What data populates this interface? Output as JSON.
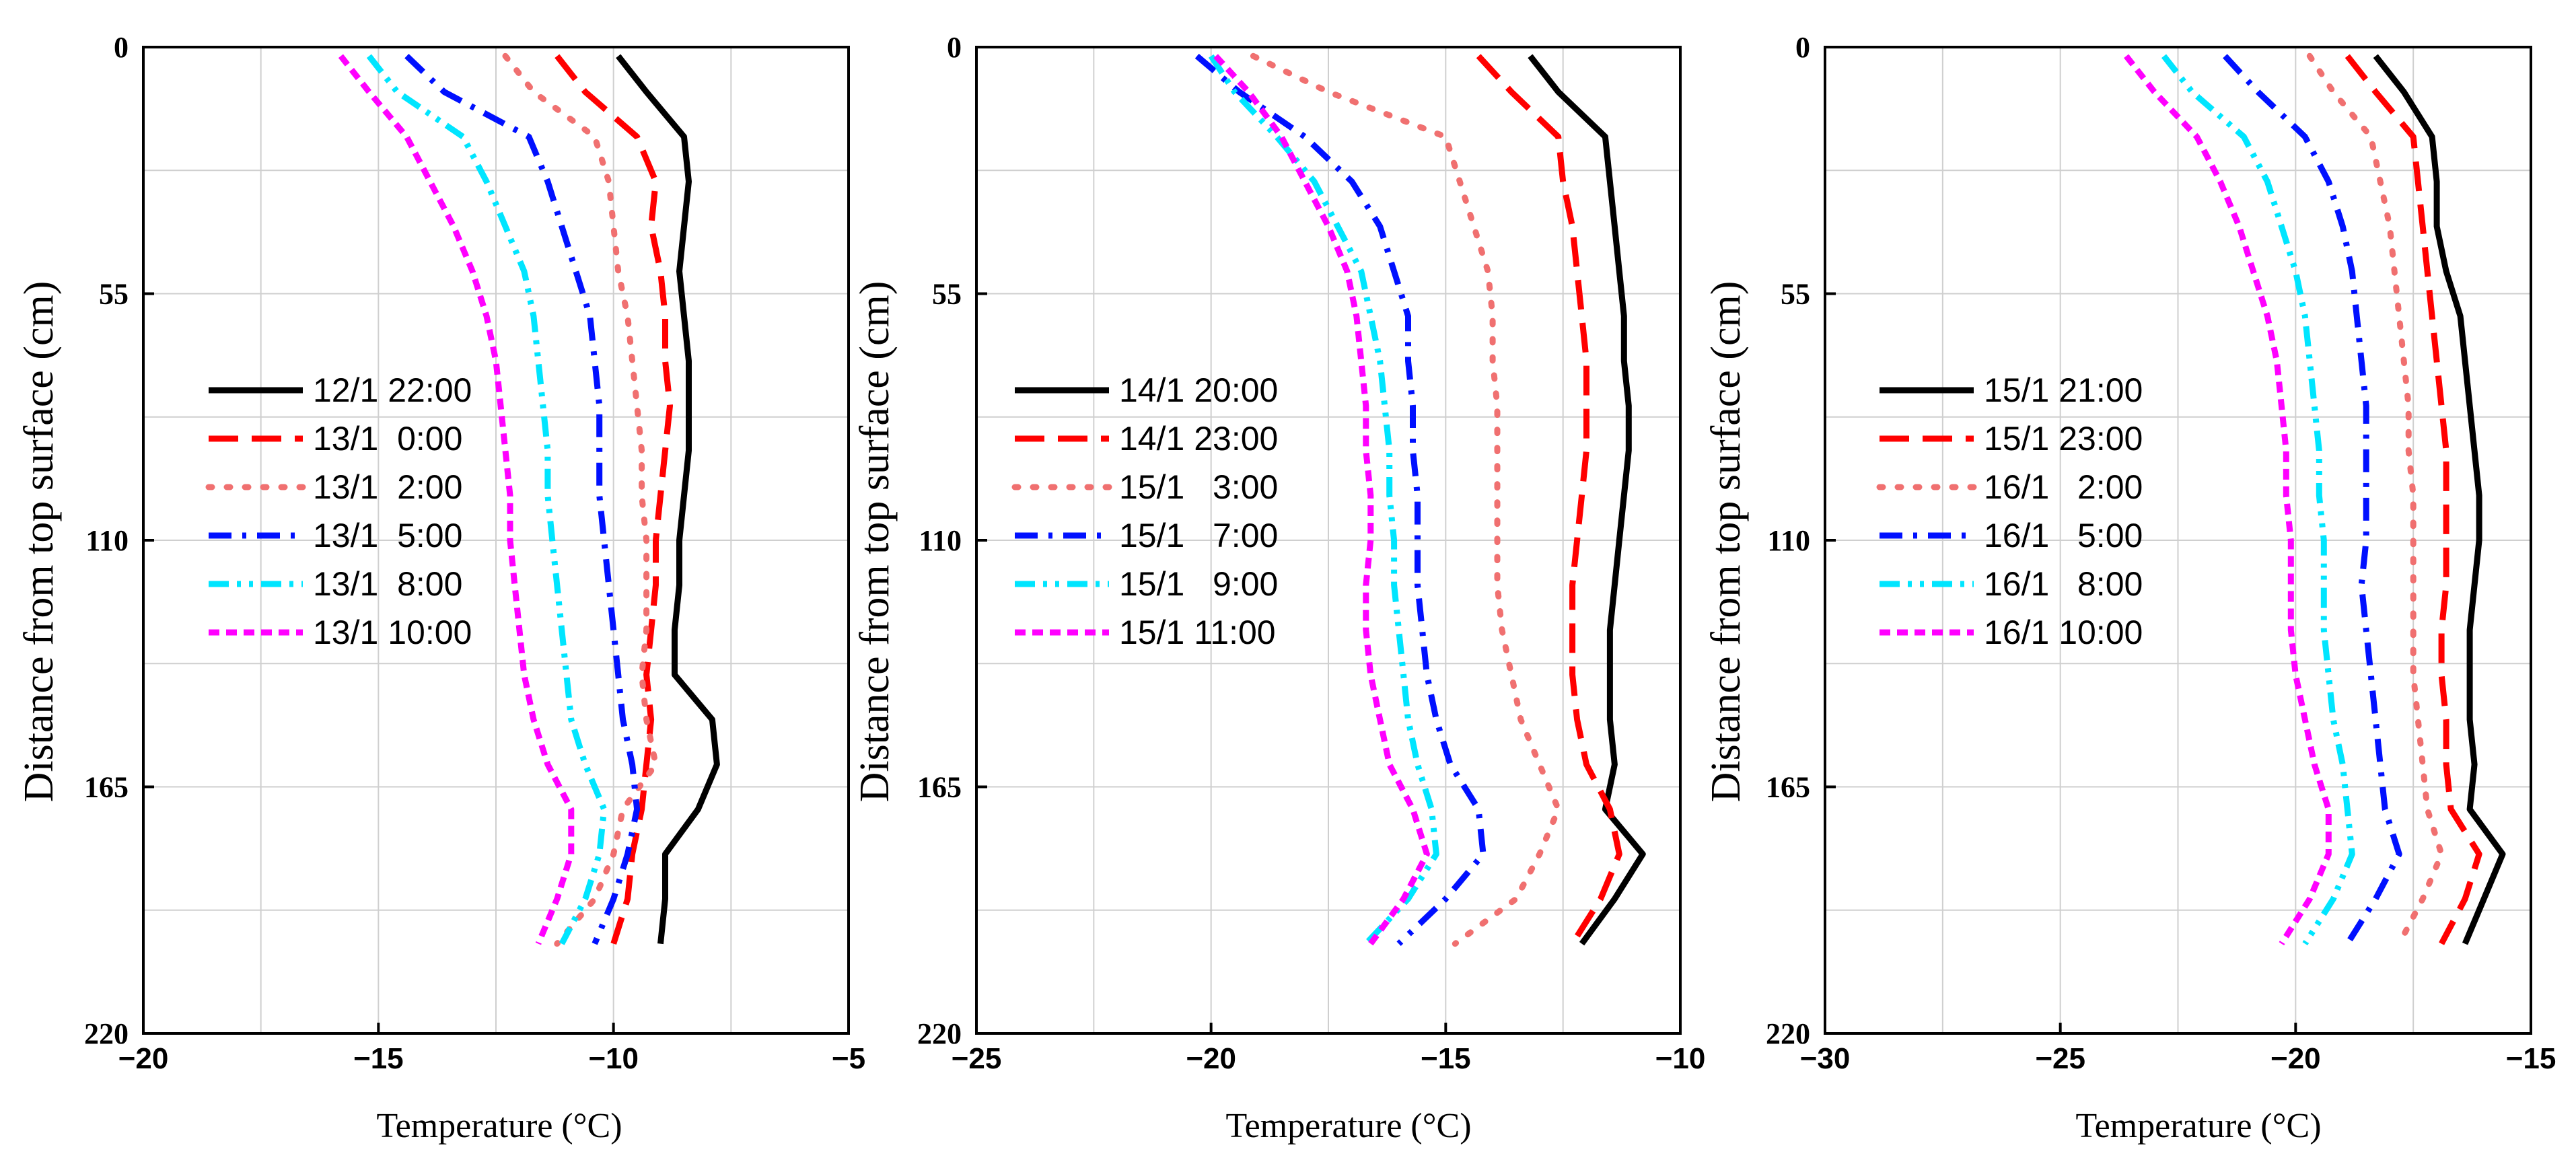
{
  "chart_data": [
    {
      "type": "line",
      "xlabel": "Temperature (°C)",
      "ylabel": "Distance from top surface (cm)",
      "xlim": [
        -20,
        -5
      ],
      "ylim": [
        220,
        0
      ],
      "xticks": [
        "−20",
        "−15",
        "−10",
        "−5"
      ],
      "yticks": [
        "0",
        "55",
        "110",
        "165",
        "220"
      ],
      "legend_position": "center-left",
      "series": [
        {
          "name": "12/1 22:00",
          "color": "#000000",
          "style": "solid",
          "x": [
            -9.9,
            -9.3,
            -8.5,
            -8.4,
            -8.5,
            -8.6,
            -8.5,
            -8.4,
            -8.4,
            -8.4,
            -8.5,
            -8.6,
            -8.6,
            -8.7,
            -8.7,
            -7.9,
            -7.8,
            -8.2,
            -8.9,
            -8.9,
            -9.0
          ],
          "y": [
            2,
            10,
            20,
            30,
            40,
            50,
            60,
            70,
            80,
            90,
            100,
            110,
            120,
            130,
            140,
            150,
            160,
            170,
            180,
            190,
            200
          ]
        },
        {
          "name": "13/1  0:00",
          "color": "#ff0000",
          "style": "dashed",
          "x": [
            -11.2,
            -10.6,
            -9.5,
            -9.1,
            -9.2,
            -9.0,
            -8.9,
            -8.9,
            -8.8,
            -8.9,
            -9.0,
            -9.1,
            -9.1,
            -9.2,
            -9.3,
            -9.2,
            -9.3,
            -9.4,
            -9.6,
            -9.7,
            -10.0
          ],
          "y": [
            2,
            10,
            20,
            30,
            40,
            50,
            60,
            70,
            80,
            90,
            100,
            110,
            120,
            130,
            140,
            150,
            160,
            170,
            180,
            190,
            200
          ]
        },
        {
          "name": "13/1  2:00",
          "color": "#f07070",
          "style": "dotted",
          "x": [
            -12.3,
            -11.7,
            -10.4,
            -10.1,
            -10.0,
            -9.9,
            -9.7,
            -9.6,
            -9.5,
            -9.4,
            -9.4,
            -9.3,
            -9.3,
            -9.3,
            -9.4,
            -9.3,
            -9.1,
            -9.8,
            -10.0,
            -10.4,
            -11.2
          ],
          "y": [
            2,
            10,
            20,
            30,
            40,
            50,
            60,
            70,
            80,
            90,
            100,
            110,
            120,
            130,
            140,
            150,
            160,
            170,
            180,
            190,
            200
          ]
        },
        {
          "name": "13/1  5:00",
          "color": "#0010ff",
          "style": "dashdot",
          "x": [
            -14.4,
            -13.6,
            -11.8,
            -11.4,
            -11.1,
            -10.8,
            -10.5,
            -10.4,
            -10.3,
            -10.3,
            -10.3,
            -10.2,
            -10.1,
            -10.0,
            -9.9,
            -9.8,
            -9.6,
            -9.5,
            -9.7,
            -10.0,
            -10.4
          ],
          "y": [
            2,
            10,
            20,
            30,
            40,
            50,
            60,
            70,
            80,
            90,
            100,
            110,
            120,
            130,
            140,
            150,
            160,
            170,
            180,
            190,
            200
          ]
        },
        {
          "name": "13/1  8:00",
          "color": "#00e5ff",
          "style": "dashdotdot",
          "x": [
            -15.2,
            -14.6,
            -13.2,
            -12.7,
            -12.3,
            -11.9,
            -11.7,
            -11.6,
            -11.5,
            -11.4,
            -11.4,
            -11.3,
            -11.2,
            -11.1,
            -11.0,
            -10.9,
            -10.6,
            -10.2,
            -10.3,
            -10.6,
            -11.1
          ],
          "y": [
            2,
            10,
            20,
            30,
            40,
            50,
            60,
            70,
            80,
            90,
            100,
            110,
            120,
            130,
            140,
            150,
            160,
            170,
            180,
            190,
            200
          ]
        },
        {
          "name": "13/1 10:00",
          "color": "#ff00ff",
          "style": "shortdash",
          "x": [
            -15.8,
            -15.2,
            -14.4,
            -13.9,
            -13.4,
            -13.0,
            -12.7,
            -12.5,
            -12.4,
            -12.3,
            -12.2,
            -12.2,
            -12.1,
            -12.0,
            -11.9,
            -11.7,
            -11.4,
            -10.9,
            -10.9,
            -11.2,
            -11.6
          ],
          "y": [
            2,
            10,
            20,
            30,
            40,
            50,
            60,
            70,
            80,
            90,
            100,
            110,
            120,
            130,
            140,
            150,
            160,
            170,
            180,
            190,
            200
          ]
        }
      ]
    },
    {
      "type": "line",
      "xlabel": "Temperature (°C)",
      "ylabel": "",
      "xlim": [
        -25,
        -10
      ],
      "ylim": [
        220,
        0
      ],
      "xticks": [
        "−25",
        "−20",
        "−15",
        "−10"
      ],
      "yticks": [
        "0",
        "55",
        "110",
        "165",
        "220"
      ],
      "legend_position": "center-left",
      "series": [
        {
          "name": "14/1 20:00",
          "color": "#000000",
          "style": "solid",
          "x": [
            -13.2,
            -12.6,
            -11.6,
            -11.5,
            -11.4,
            -11.3,
            -11.2,
            -11.2,
            -11.1,
            -11.1,
            -11.2,
            -11.3,
            -11.4,
            -11.5,
            -11.5,
            -11.5,
            -11.4,
            -11.6,
            -10.8,
            -11.4,
            -12.1
          ],
          "y": [
            2,
            10,
            20,
            30,
            40,
            50,
            60,
            70,
            80,
            90,
            100,
            110,
            120,
            130,
            140,
            150,
            160,
            170,
            180,
            190,
            200
          ]
        },
        {
          "name": "14/1 23:00",
          "color": "#ff0000",
          "style": "dashed",
          "x": [
            -14.3,
            -13.6,
            -12.6,
            -12.5,
            -12.3,
            -12.2,
            -12.1,
            -12.0,
            -12.0,
            -12.0,
            -12.1,
            -12.2,
            -12.3,
            -12.3,
            -12.3,
            -12.2,
            -12.0,
            -11.5,
            -11.3,
            -11.7,
            -12.3
          ],
          "y": [
            2,
            10,
            20,
            30,
            40,
            50,
            60,
            70,
            80,
            90,
            100,
            110,
            120,
            130,
            140,
            150,
            160,
            170,
            180,
            190,
            200
          ]
        },
        {
          "name": "15/1   3:00",
          "color": "#f07070",
          "style": "dotted",
          "x": [
            -19.1,
            -17.5,
            -15.0,
            -14.7,
            -14.4,
            -14.1,
            -14.0,
            -14.0,
            -13.9,
            -13.9,
            -13.9,
            -13.9,
            -13.9,
            -13.8,
            -13.6,
            -13.4,
            -13.0,
            -12.6,
            -13.0,
            -13.5,
            -14.8
          ],
          "y": [
            2,
            10,
            20,
            30,
            40,
            50,
            60,
            70,
            80,
            90,
            100,
            110,
            120,
            130,
            140,
            150,
            160,
            170,
            180,
            190,
            200
          ]
        },
        {
          "name": "15/1   7:00",
          "color": "#0010ff",
          "style": "dashdot",
          "x": [
            -20.3,
            -19.4,
            -18.0,
            -17.0,
            -16.4,
            -16.1,
            -15.8,
            -15.8,
            -15.7,
            -15.7,
            -15.6,
            -15.6,
            -15.6,
            -15.5,
            -15.4,
            -15.2,
            -14.9,
            -14.3,
            -14.2,
            -15.0,
            -16.0
          ],
          "y": [
            2,
            10,
            20,
            30,
            40,
            50,
            60,
            70,
            80,
            90,
            100,
            110,
            120,
            130,
            140,
            150,
            160,
            170,
            180,
            190,
            200
          ]
        },
        {
          "name": "15/1   9:00",
          "color": "#00e5ff",
          "style": "dashdotdot",
          "x": [
            -20.0,
            -19.5,
            -18.6,
            -17.8,
            -17.3,
            -16.8,
            -16.6,
            -16.4,
            -16.3,
            -16.2,
            -16.2,
            -16.1,
            -16.1,
            -16.0,
            -15.9,
            -15.8,
            -15.6,
            -15.3,
            -15.2,
            -15.8,
            -16.7
          ],
          "y": [
            2,
            10,
            20,
            30,
            40,
            50,
            60,
            70,
            80,
            90,
            100,
            110,
            120,
            130,
            140,
            150,
            160,
            170,
            180,
            190,
            200
          ]
        },
        {
          "name": "15/1 11:00",
          "color": "#ff00ff",
          "style": "shortdash",
          "x": [
            -19.9,
            -19.2,
            -18.5,
            -18.0,
            -17.5,
            -17.1,
            -16.9,
            -16.8,
            -16.7,
            -16.7,
            -16.6,
            -16.6,
            -16.7,
            -16.7,
            -16.6,
            -16.4,
            -16.2,
            -15.7,
            -15.4,
            -15.9,
            -16.6
          ],
          "y": [
            2,
            10,
            20,
            30,
            40,
            50,
            60,
            70,
            80,
            90,
            100,
            110,
            120,
            130,
            140,
            150,
            160,
            170,
            180,
            190,
            200
          ]
        }
      ]
    },
    {
      "type": "line",
      "xlabel": "Temperature (°C)",
      "ylabel": "Distance from top surface (cm)",
      "xlim": [
        -30,
        -15
      ],
      "ylim": [
        220,
        0
      ],
      "xticks": [
        "−30",
        "−25",
        "−20",
        "−15"
      ],
      "yticks": [
        "0",
        "55",
        "110",
        "165",
        "220"
      ],
      "legend_position": "center-left",
      "series": [
        {
          "name": "15/1 21:00",
          "color": "#000000",
          "style": "solid",
          "x": [
            -18.3,
            -17.7,
            -17.1,
            -17.0,
            -17.0,
            -16.8,
            -16.5,
            -16.4,
            -16.3,
            -16.2,
            -16.1,
            -16.1,
            -16.2,
            -16.3,
            -16.3,
            -16.3,
            -16.2,
            -16.3,
            -15.6,
            -16.0,
            -16.4
          ],
          "y": [
            2,
            10,
            20,
            30,
            40,
            50,
            60,
            70,
            80,
            90,
            100,
            110,
            120,
            130,
            140,
            150,
            160,
            170,
            180,
            190,
            200
          ]
        },
        {
          "name": "15/1 23:00",
          "color": "#ff0000",
          "style": "dashed",
          "x": [
            -18.9,
            -18.3,
            -17.5,
            -17.4,
            -17.3,
            -17.2,
            -17.1,
            -17.0,
            -16.9,
            -16.8,
            -16.8,
            -16.8,
            -16.8,
            -16.9,
            -16.9,
            -16.8,
            -16.8,
            -16.7,
            -16.1,
            -16.4,
            -16.9
          ],
          "y": [
            2,
            10,
            20,
            30,
            40,
            50,
            60,
            70,
            80,
            90,
            100,
            110,
            120,
            130,
            140,
            150,
            160,
            170,
            180,
            190,
            200
          ]
        },
        {
          "name": "16/1   2:00",
          "color": "#f07070",
          "style": "dotted",
          "x": [
            -19.7,
            -19.2,
            -18.4,
            -18.2,
            -18.0,
            -17.9,
            -17.8,
            -17.7,
            -17.6,
            -17.6,
            -17.5,
            -17.5,
            -17.5,
            -17.5,
            -17.5,
            -17.4,
            -17.3,
            -17.2,
            -16.9,
            -17.3,
            -17.8
          ],
          "y": [
            2,
            10,
            20,
            30,
            40,
            50,
            60,
            70,
            80,
            90,
            100,
            110,
            120,
            130,
            140,
            150,
            160,
            170,
            180,
            190,
            200
          ]
        },
        {
          "name": "16/1   5:00",
          "color": "#0010ff",
          "style": "dashdot",
          "x": [
            -21.5,
            -20.8,
            -19.8,
            -19.3,
            -19.0,
            -18.8,
            -18.7,
            -18.6,
            -18.5,
            -18.5,
            -18.5,
            -18.5,
            -18.6,
            -18.5,
            -18.4,
            -18.3,
            -18.2,
            -18.1,
            -17.8,
            -18.3,
            -18.9
          ],
          "y": [
            2,
            10,
            20,
            30,
            40,
            50,
            60,
            70,
            80,
            90,
            100,
            110,
            120,
            130,
            140,
            150,
            160,
            170,
            180,
            190,
            200
          ]
        },
        {
          "name": "16/1   8:00",
          "color": "#00e5ff",
          "style": "dashdotdot",
          "x": [
            -22.8,
            -22.2,
            -21.1,
            -20.6,
            -20.3,
            -20.0,
            -19.8,
            -19.7,
            -19.6,
            -19.5,
            -19.5,
            -19.4,
            -19.4,
            -19.4,
            -19.3,
            -19.2,
            -19.0,
            -18.9,
            -18.8,
            -19.2,
            -19.8
          ],
          "y": [
            2,
            10,
            20,
            30,
            40,
            50,
            60,
            70,
            80,
            90,
            100,
            110,
            120,
            130,
            140,
            150,
            160,
            170,
            180,
            190,
            200
          ]
        },
        {
          "name": "16/1 10:00",
          "color": "#ff00ff",
          "style": "shortdash",
          "x": [
            -23.6,
            -23.0,
            -22.1,
            -21.6,
            -21.2,
            -20.9,
            -20.6,
            -20.4,
            -20.3,
            -20.2,
            -20.2,
            -20.1,
            -20.1,
            -20.1,
            -20.0,
            -19.8,
            -19.6,
            -19.3,
            -19.3,
            -19.7,
            -20.3
          ],
          "y": [
            2,
            10,
            20,
            30,
            40,
            50,
            60,
            70,
            80,
            90,
            100,
            110,
            120,
            130,
            140,
            150,
            160,
            170,
            180,
            190,
            200
          ]
        }
      ]
    }
  ]
}
